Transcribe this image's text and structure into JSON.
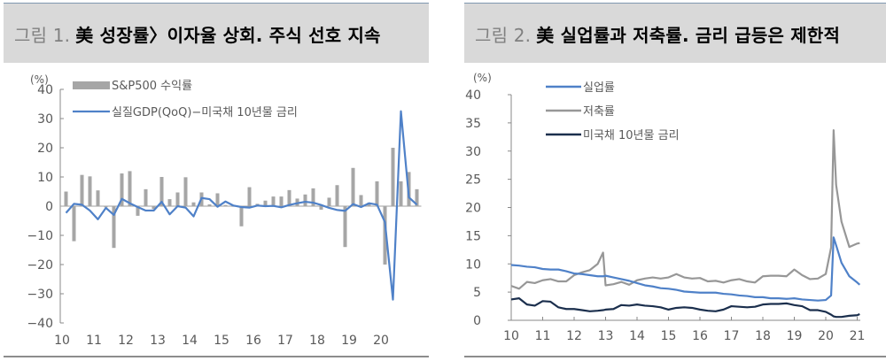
{
  "figures": [
    {
      "number_label": "그림 1.",
      "title": "美 성장률〉이자율 상회. 주식 선호 지속"
    },
    {
      "number_label": "그림 2.",
      "title": "美 실업률과 저축률. 금리 급등은 제한적"
    }
  ],
  "colors": {
    "header_bg": "#d9d9d9",
    "bar_gray": "#a6a6a6",
    "line_blue": "#4f81c8",
    "line_gray": "#979797",
    "line_navy": "#1b2f4d",
    "axis": "#898989",
    "text": "#595959"
  },
  "chart_data": [
    {
      "type": "bar+line",
      "title": "美 성장률〉이자율 상회. 주식 선호 지속",
      "ylabel": "(%)",
      "ylim": [
        -40,
        40
      ],
      "yticks": [
        "40",
        "30",
        "20",
        "10",
        "0",
        "−10",
        "−20",
        "−30",
        "−40"
      ],
      "xticks": [
        "10",
        "11",
        "12",
        "13",
        "14",
        "15",
        "16",
        "17",
        "18",
        "19",
        "20"
      ],
      "grid": false,
      "legend_position": "top-left inside",
      "x": [
        "10Q1",
        "10Q2",
        "10Q3",
        "10Q4",
        "11Q1",
        "11Q2",
        "11Q3",
        "11Q4",
        "12Q1",
        "12Q2",
        "12Q3",
        "12Q4",
        "13Q1",
        "13Q2",
        "13Q3",
        "13Q4",
        "14Q1",
        "14Q2",
        "14Q3",
        "14Q4",
        "15Q1",
        "15Q2",
        "15Q3",
        "15Q4",
        "16Q1",
        "16Q2",
        "16Q3",
        "16Q4",
        "17Q1",
        "17Q2",
        "17Q3",
        "17Q4",
        "18Q1",
        "18Q2",
        "18Q3",
        "18Q4",
        "19Q1",
        "19Q2",
        "19Q3",
        "19Q4",
        "20Q1",
        "20Q2",
        "20Q3",
        "20Q4",
        "21Q1"
      ],
      "series": [
        {
          "name": "S&P500 수익률",
          "kind": "bar",
          "values": [
            5.0,
            -12.0,
            10.7,
            10.2,
            5.4,
            -0.4,
            -14.3,
            11.2,
            12.0,
            -3.3,
            5.8,
            -1.0,
            10.0,
            2.4,
            4.7,
            9.9,
            1.3,
            4.7,
            0.6,
            4.4,
            0.4,
            -0.2,
            -6.9,
            6.5,
            0.8,
            1.9,
            3.3,
            3.3,
            5.5,
            2.6,
            4.0,
            6.1,
            -1.2,
            2.9,
            7.2,
            -14.0,
            13.1,
            3.8,
            1.2,
            8.5,
            -20.0,
            20.0,
            8.5,
            11.7,
            5.8
          ],
          "color": "#a6a6a6"
        },
        {
          "name": "실질GDP(QoQ)−미국채 10년물 금리",
          "kind": "line",
          "values": [
            -2.3,
            0.8,
            0.5,
            -1.5,
            -4.5,
            -0.6,
            -3.0,
            2.5,
            1.0,
            -0.3,
            -1.5,
            -1.5,
            1.5,
            -2.8,
            0.0,
            -0.5,
            -3.5,
            2.8,
            2.4,
            -0.2,
            1.6,
            0.2,
            -0.3,
            -0.5,
            0.2,
            0.0,
            0.1,
            -0.4,
            0.4,
            1.0,
            1.5,
            1.2,
            0.4,
            -0.6,
            -1.3,
            -1.6,
            0.7,
            -0.3,
            1.0,
            0.5,
            -5.5,
            -32.0,
            32.5,
            3.0,
            0.5
          ],
          "color": "#4f81c8"
        }
      ]
    },
    {
      "type": "line",
      "title": "美 실업률과 저축률. 금리 급등은 제한적",
      "ylabel": "(%)",
      "ylim": [
        0,
        40
      ],
      "yticks": [
        "40",
        "35",
        "30",
        "25",
        "20",
        "15",
        "10",
        "5",
        "0"
      ],
      "xticks": [
        "10",
        "11",
        "12",
        "13",
        "14",
        "15",
        "16",
        "17",
        "18",
        "19",
        "20",
        "21"
      ],
      "grid": false,
      "legend_position": "top-left inside",
      "x_desc": "quarterly samples (month-level approximation) from 2010 to early 2021",
      "x": [
        2010.0,
        2010.25,
        2010.5,
        2010.75,
        2011.0,
        2011.25,
        2011.5,
        2011.75,
        2012.0,
        2012.25,
        2012.5,
        2012.75,
        2012.92,
        2013.0,
        2013.25,
        2013.5,
        2013.75,
        2014.0,
        2014.25,
        2014.5,
        2014.75,
        2015.0,
        2015.25,
        2015.5,
        2015.75,
        2016.0,
        2016.25,
        2016.5,
        2016.75,
        2017.0,
        2017.25,
        2017.5,
        2017.75,
        2018.0,
        2018.25,
        2018.5,
        2018.75,
        2019.0,
        2019.25,
        2019.5,
        2019.75,
        2020.0,
        2020.17,
        2020.25,
        2020.33,
        2020.5,
        2020.75,
        2021.0,
        2021.08
      ],
      "series": [
        {
          "name": "실업률",
          "values": [
            9.8,
            9.7,
            9.5,
            9.4,
            9.1,
            9.0,
            9.0,
            8.7,
            8.3,
            8.2,
            8.0,
            7.8,
            7.8,
            7.9,
            7.6,
            7.3,
            7.0,
            6.6,
            6.2,
            6.0,
            5.7,
            5.6,
            5.4,
            5.1,
            5.0,
            4.9,
            4.9,
            4.9,
            4.7,
            4.6,
            4.4,
            4.3,
            4.1,
            4.1,
            3.9,
            3.9,
            3.8,
            3.9,
            3.7,
            3.6,
            3.5,
            3.6,
            4.4,
            14.7,
            13.3,
            10.2,
            7.8,
            6.7,
            6.3
          ],
          "color": "#4f81c8"
        },
        {
          "name": "저축률",
          "values": [
            6.1,
            5.6,
            6.8,
            6.6,
            7.1,
            7.3,
            6.9,
            6.9,
            8.0,
            8.5,
            8.9,
            10.0,
            12.0,
            6.2,
            6.4,
            6.8,
            6.3,
            7.1,
            7.4,
            7.6,
            7.4,
            7.6,
            8.2,
            7.6,
            7.4,
            7.5,
            6.9,
            7.0,
            6.7,
            7.1,
            7.3,
            6.9,
            6.7,
            7.8,
            7.9,
            7.9,
            7.8,
            9.0,
            8.0,
            7.3,
            7.4,
            8.2,
            12.9,
            33.7,
            24.0,
            17.5,
            13.0,
            13.6,
            13.7
          ],
          "color": "#979797"
        },
        {
          "name": "미국채 10년물 금리",
          "values": [
            3.7,
            3.9,
            2.8,
            2.6,
            3.4,
            3.3,
            2.3,
            2.0,
            2.0,
            1.8,
            1.6,
            1.7,
            1.8,
            1.9,
            2.0,
            2.7,
            2.6,
            2.8,
            2.6,
            2.5,
            2.3,
            1.9,
            2.2,
            2.3,
            2.2,
            1.9,
            1.7,
            1.6,
            1.9,
            2.5,
            2.4,
            2.3,
            2.4,
            2.8,
            2.9,
            2.9,
            3.0,
            2.7,
            2.5,
            1.8,
            1.8,
            1.5,
            1.0,
            0.7,
            0.6,
            0.6,
            0.8,
            0.9,
            1.1
          ],
          "color": "#1b2f4d"
        }
      ]
    }
  ]
}
